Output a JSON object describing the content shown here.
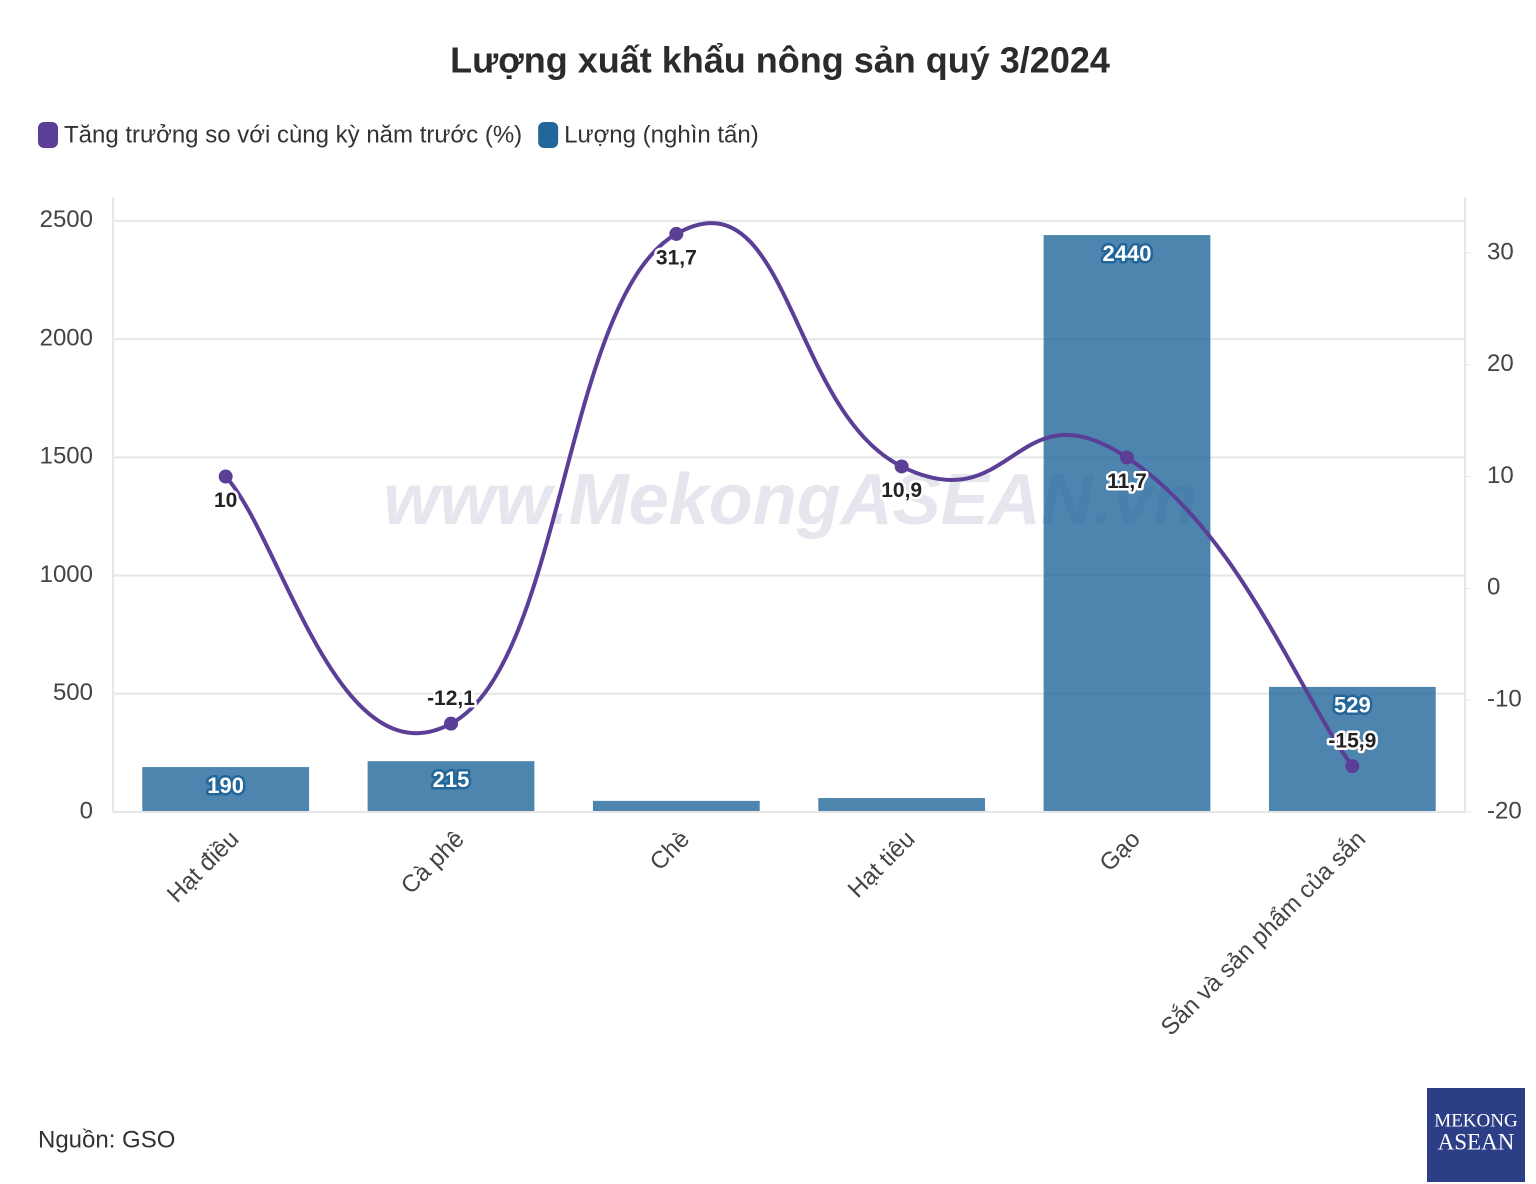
{
  "chart_data": {
    "type": "bar",
    "title": "Lượng xuất khẩu nông sản quý 3/2024",
    "categories": [
      "Hạt điều",
      "Cà phê",
      "Chè",
      "Hạt tiêu",
      "Gạo",
      "Sắn và sản phẩm của sắn"
    ],
    "series": [
      {
        "name": "Tăng trưởng so với cùng kỳ năm trước (%)",
        "type": "line",
        "axis": "y2",
        "color": "#5b3f96",
        "values": [
          10,
          -12.1,
          31.7,
          10.9,
          11.7,
          -15.9
        ],
        "value_labels": [
          "10",
          "-12,1",
          "31,7",
          "10,9",
          "11,7",
          "-15,9"
        ]
      },
      {
        "name": "Lượng (nghìn tấn)",
        "type": "bar",
        "color": "#22669a",
        "values": [
          190,
          215,
          47,
          59,
          2440,
          529
        ]
      }
    ],
    "ylim": [
      0,
      2601
    ],
    "yticks": [
      0,
      500,
      1000,
      1500,
      2000,
      2500
    ],
    "y2lim": [
      -20,
      35
    ],
    "y2ticks": [
      -20,
      -10,
      0,
      10,
      20,
      30
    ],
    "grid": true,
    "legend": "top-left",
    "source": "Nguồn: GSO",
    "watermark": "www.MekongASEAN.vn"
  },
  "logo": {
    "line1": "MEKONG",
    "line2": "ASEAN"
  }
}
